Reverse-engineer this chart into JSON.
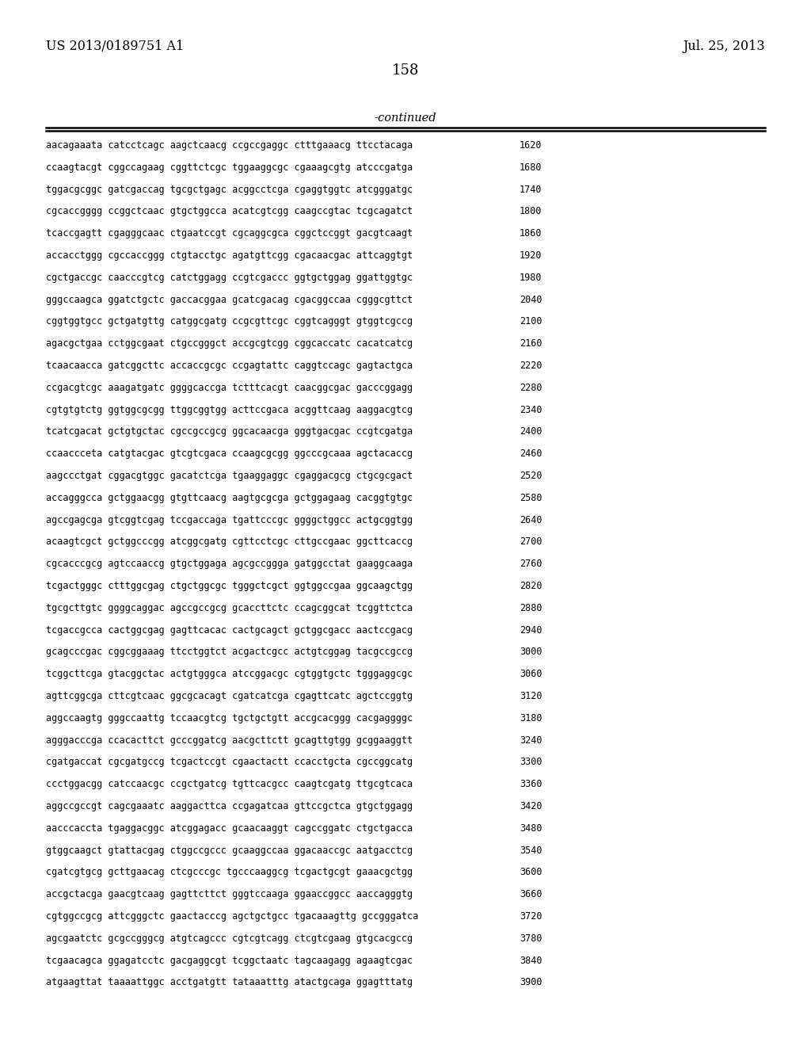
{
  "header_left": "US 2013/0189751 A1",
  "header_right": "Jul. 25, 2013",
  "page_number": "158",
  "continued_label": "-continued",
  "background_color": "#ffffff",
  "text_color": "#000000",
  "sequence_rows": [
    [
      "aacagaaata catcctcagc aagctcaacg ccgccgaggc ctttgaaacg ttcctacaga",
      "1620"
    ],
    [
      "ccaagtacgt cggccagaag cggttctcgc tggaaggcgc cgaaagcgtg atcccgatga",
      "1680"
    ],
    [
      "tggacgcggc gatcgaccag tgcgctgagc acggcctcga cgaggtggtc atcgggatgc",
      "1740"
    ],
    [
      "cgcaccgggg ccggctcaac gtgctggcca acatcgtcgg caagccgtac tcgcagatct",
      "1800"
    ],
    [
      "tcaccgagtt cgagggcaac ctgaatccgt cgcaggcgca cggctccggt gacgtcaagt",
      "1860"
    ],
    [
      "accacctggg cgccaccggg ctgtacctgc agatgttcgg cgacaacgac attcaggtgt",
      "1920"
    ],
    [
      "cgctgaccgc caacccgtcg catctggagg ccgtcgaccc ggtgctggag ggattggtgc",
      "1980"
    ],
    [
      "gggccaagca ggatctgctc gaccacggaa gcatcgacag cgacggccaa cgggcgttct",
      "2040"
    ],
    [
      "cggtggtgcc gctgatgttg catggcgatg ccgcgttcgc cggtcagggt gtggtcgccg",
      "2100"
    ],
    [
      "agacgctgaa cctggcgaat ctgccgggct accgcgtcgg cggcaccatc cacatcatcg",
      "2160"
    ],
    [
      "tcaacaacca gatcggcttc accaccgcgc ccgagtattc caggtccagc gagtactgca",
      "2220"
    ],
    [
      "ccgacgtcgc aaagatgatc ggggcaccga tctttcacgt caacggcgac gacccggagg",
      "2280"
    ],
    [
      "cgtgtgtctg ggtggcgcgg ttggcggtgg acttccgaca acggttcaag aaggacgtcg",
      "2340"
    ],
    [
      "tcatcgacat gctgtgctac cgccgccgcg ggcacaacga gggtgacgac ccgtcgatga",
      "2400"
    ],
    [
      "ccaaccceta catgtacgac gtcgtcgaca ccaagcgcgg ggcccgcaaa agctacaccg",
      "2460"
    ],
    [
      "aagccctgat cggacgtggc gacatctcga tgaaggaggc cgaggacgcg ctgcgcgact",
      "2520"
    ],
    [
      "accagggcca gctggaacgg gtgttcaacg aagtgcgcga gctggagaag cacggtgtgc",
      "2580"
    ],
    [
      "agccgagcga gtcggtcgag tccgaccaga tgattcccgc ggggctggcc actgcggtgg",
      "2640"
    ],
    [
      "acaagtcgct gctggcccgg atcggcgatg cgttcctcgc cttgccgaac ggcttcaccg",
      "2700"
    ],
    [
      "cgcacccgcg agtccaaccg gtgctggaga agcgccggga gatggcctat gaaggcaaga",
      "2760"
    ],
    [
      "tcgactgggc ctttggcgag ctgctggcgc tgggctcgct ggtggccgaa ggcaagctgg",
      "2820"
    ],
    [
      "tgcgcttgtc ggggcaggac agccgccgcg gcaccttctc ccagcggcat tcggttctca",
      "2880"
    ],
    [
      "tcgaccgcca cactggcgag gagttcacac cactgcagct gctggcgacc aactccgacg",
      "2940"
    ],
    [
      "gcagcccgac cggcggaaag ttcctggtct acgactcgcc actgtcggag tacgccgccg",
      "3000"
    ],
    [
      "tcggcttcga gtacggctac actgtgggca atccggacgc cgtggtgctc tgggaggcgc",
      "3060"
    ],
    [
      "agttcggcga cttcgtcaac ggcgcacagt cgatcatcga cgagttcatc agctccggtg",
      "3120"
    ],
    [
      "aggccaagtg gggccaattg tccaacgtcg tgctgctgtt accgcacggg cacgaggggc",
      "3180"
    ],
    [
      "agggacccga ccacacttct gcccggatcg aacgcttctt gcagttgtgg gcggaaggtt",
      "3240"
    ],
    [
      "cgatgaccat cgcgatgccg tcgactccgt cgaactactt ccacctgcta cgccggcatg",
      "3300"
    ],
    [
      "ccctggacgg catccaacgc ccgctgatcg tgttcacgcc caagtcgatg ttgcgtcaca",
      "3360"
    ],
    [
      "aggccgccgt cagcgaaatc aaggacttca ccgagatcaa gttccgctca gtgctggagg",
      "3420"
    ],
    [
      "aacccaccta tgaggacggc atcggagacc gcaacaaggt cagccggatc ctgctgacca",
      "3480"
    ],
    [
      "gtggcaagct gtattacgag ctggccgccc gcaaggccaa ggacaaccgc aatgacctcg",
      "3540"
    ],
    [
      "cgatcgtgcg gcttgaacag ctcgcccgc tgcccaaggcg tcgactgcgt gaaacgctgg",
      "3600"
    ],
    [
      "accgctacga gaacgtcaag gagttcttct gggtccaaga ggaaccggcc aaccagggtg",
      "3660"
    ],
    [
      "cgtggccgcg attcgggctc gaactacccg agctgctgcc tgacaaagttg gccgggatca",
      "3720"
    ],
    [
      "agcgaatctc gcgccgggcg atgtcagccc cgtcgtcagg ctcgtcgaag gtgcacgccg",
      "3780"
    ],
    [
      "tcgaacagca ggagatcctc gacgaggcgt tcggctaatc tagcaagagg agaagtcgac",
      "3840"
    ],
    [
      "atgaagttat taaaattggc acctgatgtt tataaatttg atactgcaga ggagtttatg",
      "3900"
    ]
  ]
}
